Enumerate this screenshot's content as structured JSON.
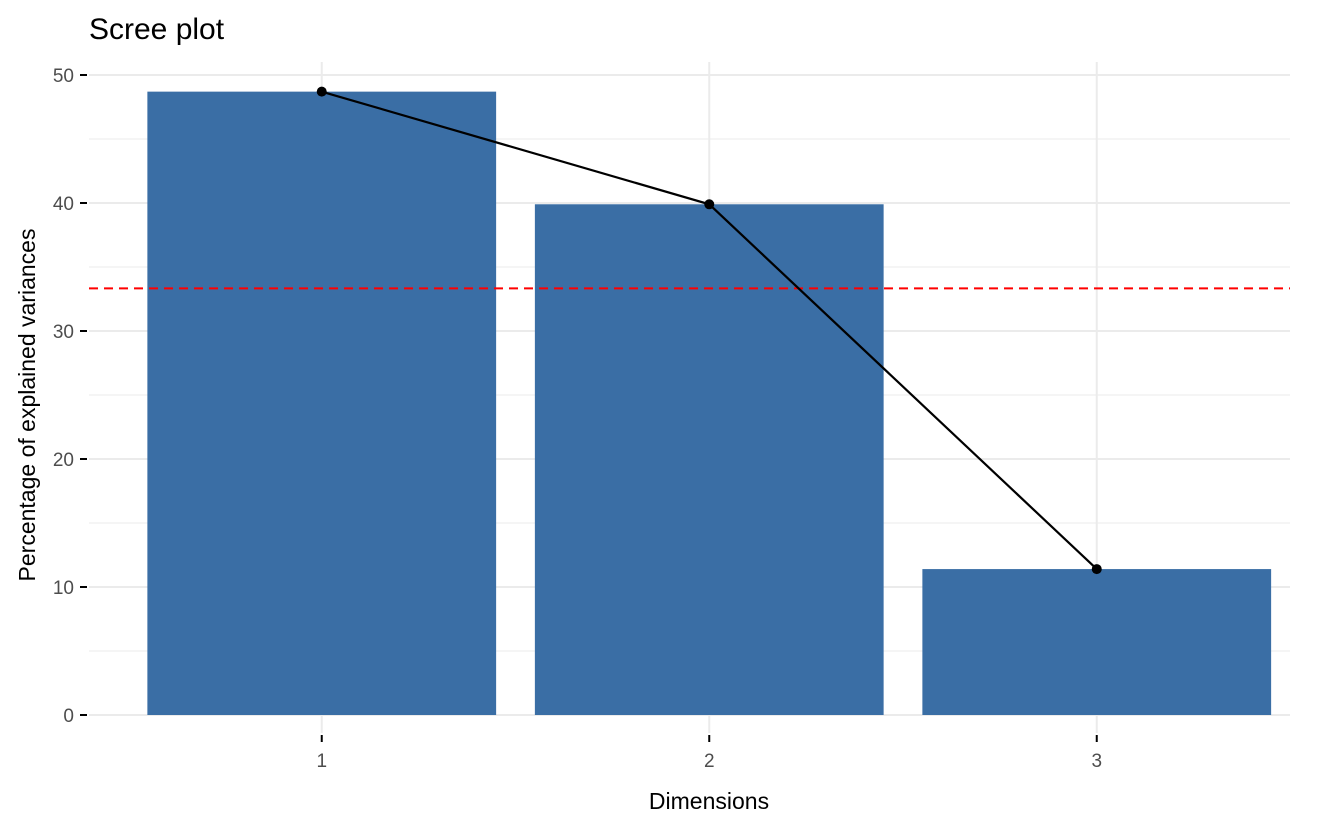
{
  "chart_data": {
    "type": "bar",
    "title": "Scree plot",
    "xlabel": "Dimensions",
    "ylabel": "Percentage of explained variances",
    "categories": [
      "1",
      "2",
      "3"
    ],
    "values": [
      48.7,
      39.9,
      11.4
    ],
    "line_overlay": true,
    "reference_line": {
      "value": 33.33,
      "style": "dashed",
      "color": "#ff0000"
    },
    "ylim": [
      0,
      50
    ],
    "yticks": [
      0,
      10,
      20,
      30,
      40,
      50
    ],
    "grid": true,
    "legend": "none",
    "colors": {
      "bar": "#3a6ea5",
      "line": "#000000",
      "grid": "#ebebeb"
    }
  }
}
